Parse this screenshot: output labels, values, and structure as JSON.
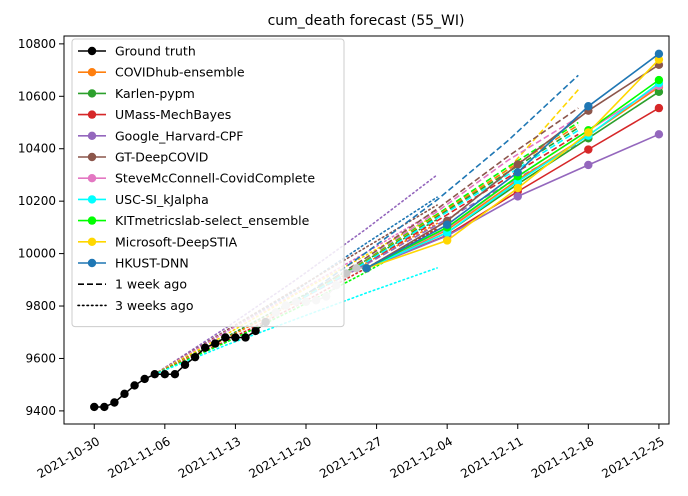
{
  "chart_data": {
    "type": "line",
    "title": "cum_death forecast (55_WI)",
    "xlabel": "",
    "ylabel": "",
    "x_range": [
      "2021-10-27",
      "2021-12-26"
    ],
    "ylim": [
      9350,
      10830
    ],
    "x_ticks": [
      "2021-10-30",
      "2021-11-06",
      "2021-11-13",
      "2021-11-20",
      "2021-11-27",
      "2021-12-04",
      "2021-12-11",
      "2021-12-18",
      "2021-12-25"
    ],
    "y_ticks": [
      9400,
      9600,
      9800,
      10000,
      10200,
      10400,
      10600,
      10800
    ],
    "grid": false,
    "legend_position": "top-left",
    "legend": [
      {
        "label": "Ground truth",
        "color": "#000000",
        "style": "solid",
        "marker": true
      },
      {
        "label": "COVIDhub-ensemble",
        "color": "#ff7f0e",
        "style": "solid",
        "marker": true
      },
      {
        "label": "Karlen-pypm",
        "color": "#2ca02c",
        "style": "solid",
        "marker": true
      },
      {
        "label": "UMass-MechBayes",
        "color": "#d62728",
        "style": "solid",
        "marker": true
      },
      {
        "label": "Google_Harvard-CPF",
        "color": "#9467bd",
        "style": "solid",
        "marker": true
      },
      {
        "label": "GT-DeepCOVID",
        "color": "#8c564b",
        "style": "solid",
        "marker": true
      },
      {
        "label": "SteveMcConnell-CovidComplete",
        "color": "#e377c2",
        "style": "solid",
        "marker": true
      },
      {
        "label": "USC-SI_kJalpha",
        "color": "#00ffff",
        "style": "solid",
        "marker": true
      },
      {
        "label": "KITmetricslab-select_ensemble",
        "color": "#00ff00",
        "style": "solid",
        "marker": true
      },
      {
        "label": "Microsoft-DeepSTIA",
        "color": "#ffd700",
        "style": "solid",
        "marker": true
      },
      {
        "label": "HKUST-DNN",
        "color": "#1f77b4",
        "style": "solid",
        "marker": true
      },
      {
        "label": "1 week ago",
        "color": "#000000",
        "style": "dashed",
        "marker": false
      },
      {
        "label": "3 weeks ago",
        "color": "#000000",
        "style": "dotted",
        "marker": false
      }
    ],
    "ground_truth": {
      "color": "#000000",
      "x": [
        "2021-10-30",
        "2021-10-31",
        "2021-11-01",
        "2021-11-02",
        "2021-11-03",
        "2021-11-04",
        "2021-11-05",
        "2021-11-06",
        "2021-11-07",
        "2021-11-08",
        "2021-11-09",
        "2021-11-10",
        "2021-11-11",
        "2021-11-12",
        "2021-11-13",
        "2021-11-14",
        "2021-11-15",
        "2021-11-16"
      ],
      "y": [
        9415,
        9415,
        9432,
        9465,
        9497,
        9522,
        9540,
        9540,
        9540,
        9576,
        9605,
        9641,
        9657,
        9680,
        9680,
        9680,
        9705,
        9739
      ]
    },
    "ground_truth_faded": {
      "color": "#c8c8c8",
      "x": [
        "2021-11-16",
        "2021-11-17",
        "2021-11-18",
        "2021-11-19",
        "2021-11-20",
        "2021-11-21",
        "2021-11-22",
        "2021-11-23",
        "2021-11-24",
        "2021-11-25",
        "2021-11-26"
      ],
      "y": [
        9739,
        9776,
        9802,
        9816,
        9816,
        9822,
        9836,
        9879,
        9924,
        9944,
        9944
      ]
    },
    "forecast_start": {
      "x": "2021-11-26",
      "y": 9944
    },
    "forecast_x": [
      "2021-12-04",
      "2021-12-11",
      "2021-12-18",
      "2021-12-25"
    ],
    "series": [
      {
        "name": "COVIDhub-ensemble",
        "color": "#ff7f0e",
        "values": [
          10090,
          10282,
          10452,
          10635
        ]
      },
      {
        "name": "Karlen-pypm",
        "color": "#2ca02c",
        "values": [
          10080,
          10265,
          10440,
          10617
        ]
      },
      {
        "name": "UMass-MechBayes",
        "color": "#d62728",
        "values": [
          10070,
          10237,
          10397,
          10555
        ]
      },
      {
        "name": "Google_Harvard-CPF",
        "color": "#9467bd",
        "values": [
          10068,
          10218,
          10338,
          10455
        ]
      },
      {
        "name": "GT-DeepCOVID",
        "color": "#8c564b",
        "values": [
          10125,
          10340,
          10545,
          10720
        ]
      },
      {
        "name": "SteveMcConnell-CovidComplete",
        "color": "#e377c2",
        "values": [
          10095,
          10295,
          10470,
          10640
        ]
      },
      {
        "name": "USC-SI_kJalpha",
        "color": "#00ffff",
        "values": [
          10080,
          10275,
          10450,
          10650
        ]
      },
      {
        "name": "KITmetricslab-select_ensemble",
        "color": "#00ff00",
        "values": [
          10100,
          10295,
          10470,
          10662
        ]
      },
      {
        "name": "Microsoft-DeepSTIA",
        "color": "#ffd700",
        "values": [
          10050,
          10250,
          10462,
          10740
        ]
      },
      {
        "name": "HKUST-DNN",
        "color": "#1f77b4",
        "values": [
          10110,
          10310,
          10562,
          10762
        ]
      }
    ],
    "forecasts_1_week_ago": [
      {
        "color": "#1f77b4",
        "x": [
          "2021-11-19",
          "2021-11-26",
          "2021-12-03",
          "2021-12-10",
          "2021-12-17"
        ],
        "y": [
          9816,
          10005,
          10205,
          10430,
          10680
        ]
      },
      {
        "color": "#ffd700",
        "x": [
          "2021-11-19",
          "2021-11-26",
          "2021-12-03",
          "2021-12-10",
          "2021-12-17"
        ],
        "y": [
          9816,
          9975,
          10140,
          10320,
          10625
        ]
      },
      {
        "color": "#8c564b",
        "x": [
          "2021-11-19",
          "2021-11-26",
          "2021-12-03",
          "2021-12-10",
          "2021-12-17"
        ],
        "y": [
          9816,
          9985,
          10170,
          10370,
          10555
        ]
      },
      {
        "color": "#e377c2",
        "x": [
          "2021-11-19",
          "2021-11-26",
          "2021-12-03",
          "2021-12-10",
          "2021-12-17"
        ],
        "y": [
          9816,
          9978,
          10160,
          10355,
          10520
        ]
      },
      {
        "color": "#00ff00",
        "x": [
          "2021-11-19",
          "2021-11-26",
          "2021-12-03",
          "2021-12-10",
          "2021-12-17"
        ],
        "y": [
          9816,
          9975,
          10150,
          10330,
          10500
        ]
      },
      {
        "color": "#ff7f0e",
        "x": [
          "2021-11-19",
          "2021-11-26",
          "2021-12-03",
          "2021-12-10",
          "2021-12-17"
        ],
        "y": [
          9816,
          9972,
          10145,
          10320,
          10490
        ]
      },
      {
        "color": "#2ca02c",
        "x": [
          "2021-11-19",
          "2021-11-26",
          "2021-12-03",
          "2021-12-10",
          "2021-12-17"
        ],
        "y": [
          9816,
          9970,
          10140,
          10310,
          10480
        ]
      },
      {
        "color": "#d62728",
        "x": [
          "2021-11-19",
          "2021-11-26",
          "2021-12-03",
          "2021-12-10",
          "2021-12-17"
        ],
        "y": [
          9816,
          9965,
          10125,
          10290,
          10455
        ]
      },
      {
        "color": "#9467bd",
        "x": [
          "2021-11-19",
          "2021-11-26",
          "2021-12-03",
          "2021-12-10",
          "2021-12-17"
        ],
        "y": [
          9816,
          9960,
          10110,
          10265,
          10420
        ]
      },
      {
        "color": "#00ffff",
        "x": [
          "2021-11-19",
          "2021-11-26",
          "2021-12-03",
          "2021-12-10",
          "2021-12-17"
        ],
        "y": [
          9816,
          9968,
          10135,
          10300,
          10470
        ]
      }
    ],
    "forecasts_3_weeks_ago": [
      {
        "color": "#9467bd",
        "x": [
          "2021-11-05",
          "2021-11-12",
          "2021-11-19",
          "2021-11-26",
          "2021-12-03"
        ],
        "y": [
          9540,
          9715,
          9900,
          10095,
          10300
        ]
      },
      {
        "color": "#1f77b4",
        "x": [
          "2021-11-05",
          "2021-11-12",
          "2021-11-19",
          "2021-11-26",
          "2021-12-03"
        ],
        "y": [
          9540,
          9700,
          9860,
          10040,
          10215
        ]
      },
      {
        "color": "#8c564b",
        "x": [
          "2021-11-05",
          "2021-11-12",
          "2021-11-19",
          "2021-11-26",
          "2021-12-03"
        ],
        "y": [
          9540,
          9705,
          9865,
          10025,
          10185
        ]
      },
      {
        "color": "#e377c2",
        "x": [
          "2021-11-05",
          "2021-11-12",
          "2021-11-19",
          "2021-11-26",
          "2021-12-03"
        ],
        "y": [
          9540,
          9700,
          9850,
          10005,
          10165
        ]
      },
      {
        "color": "#ffd700",
        "x": [
          "2021-11-05",
          "2021-11-12",
          "2021-11-19",
          "2021-11-26",
          "2021-12-03"
        ],
        "y": [
          9540,
          9690,
          9845,
          9995,
          10150
        ]
      },
      {
        "color": "#2ca02c",
        "x": [
          "2021-11-05",
          "2021-11-12",
          "2021-11-19",
          "2021-11-26",
          "2021-12-03"
        ],
        "y": [
          9540,
          9680,
          9825,
          9975,
          10130
        ]
      },
      {
        "color": "#ff7f0e",
        "x": [
          "2021-11-05",
          "2021-11-12",
          "2021-11-19",
          "2021-11-26",
          "2021-12-03"
        ],
        "y": [
          9540,
          9675,
          9815,
          9965,
          10115
        ]
      },
      {
        "color": "#d62728",
        "x": [
          "2021-11-05",
          "2021-11-12",
          "2021-11-19",
          "2021-11-26",
          "2021-12-03"
        ],
        "y": [
          9540,
          9665,
          9800,
          9945,
          10095
        ]
      },
      {
        "color": "#00ff00",
        "x": [
          "2021-11-05",
          "2021-11-12",
          "2021-11-19",
          "2021-11-26",
          "2021-12-03"
        ],
        "y": [
          9540,
          9660,
          9790,
          9930,
          10080
        ]
      },
      {
        "color": "#00ffff",
        "x": [
          "2021-11-05",
          "2021-11-12",
          "2021-11-19",
          "2021-11-26",
          "2021-12-03"
        ],
        "y": [
          9540,
          9650,
          9750,
          9850,
          9945
        ]
      }
    ]
  }
}
